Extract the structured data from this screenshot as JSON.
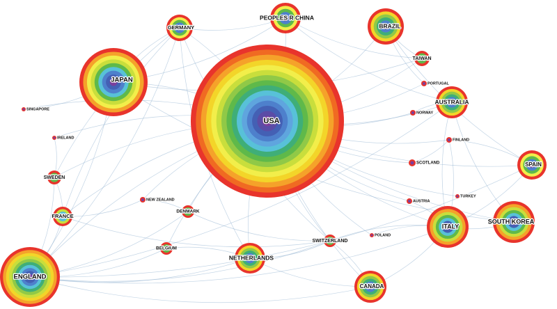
{
  "network": {
    "ring_colors": [
      "#e8342c",
      "#f06a22",
      "#f5a22a",
      "#f3d529",
      "#f2ee4a",
      "#c9de3c",
      "#90c947",
      "#5fb94a",
      "#3fae78",
      "#58c1d8",
      "#5fa5de",
      "#4e80cc",
      "#4460b4",
      "#5b4ca6",
      "#7a3f9c"
    ],
    "edge_color": "#8fb0cf",
    "countries": [
      {
        "name": "USA",
        "rings": 15
      },
      {
        "name": "PEOPLES R CHINA",
        "rings": 5
      },
      {
        "name": "GERMANY",
        "rings": 5
      },
      {
        "name": "BRAZIL",
        "rings": 6
      },
      {
        "name": "JAPAN",
        "rings": 9
      },
      {
        "name": "TAIWAN",
        "rings": 3
      },
      {
        "name": "PORTUGAL",
        "rings": 2
      },
      {
        "name": "AUSTRALIA",
        "rings": 6
      },
      {
        "name": "NORWAY",
        "rings": 2
      },
      {
        "name": "SINGAPORE",
        "rings": 2
      },
      {
        "name": "IRELAND",
        "rings": 2
      },
      {
        "name": "FINLAND",
        "rings": 2
      },
      {
        "name": "SCOTLAND",
        "rings": 2
      },
      {
        "name": "SPAIN",
        "rings": 5
      },
      {
        "name": "SWEDEN",
        "rings": 3
      },
      {
        "name": "NEW ZEALAND",
        "rings": 2
      },
      {
        "name": "DENMARK",
        "rings": 3
      },
      {
        "name": "TURKEY",
        "rings": 2
      },
      {
        "name": "AUSTRIA",
        "rings": 2
      },
      {
        "name": "FRANCE",
        "rings": 4
      },
      {
        "name": "ITALY",
        "rings": 7
      },
      {
        "name": "SOUTH KOREA",
        "rings": 7
      },
      {
        "name": "POLAND",
        "rings": 2
      },
      {
        "name": "SWITZERLAND",
        "rings": 3
      },
      {
        "name": "BELGIUM",
        "rings": 3
      },
      {
        "name": "NETHERLANDS",
        "rings": 6
      },
      {
        "name": "ENGLAND",
        "rings": 10
      },
      {
        "name": "CANADA",
        "rings": 6
      }
    ]
  }
}
